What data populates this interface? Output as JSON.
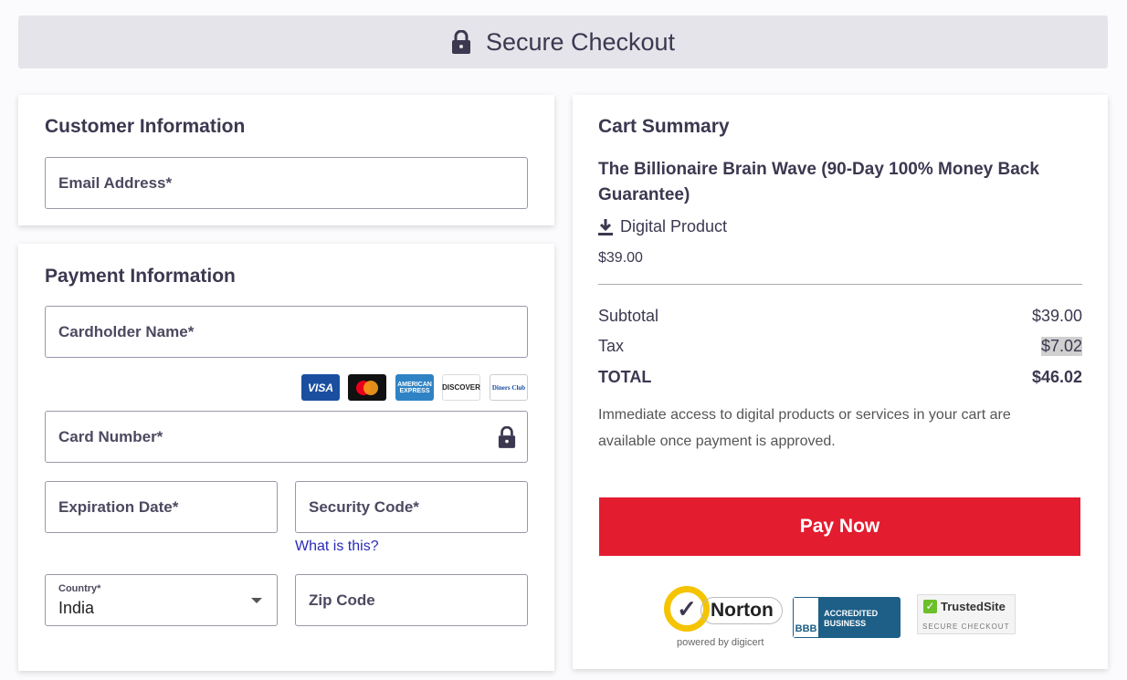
{
  "header": {
    "title": "Secure Checkout",
    "icon": "lock-icon"
  },
  "customer": {
    "title": "Customer Information",
    "email_label": "Email Address*"
  },
  "payment": {
    "title": "Payment Information",
    "cardholder_label": "Cardholder Name*",
    "card_brands": [
      "VISA",
      "mastercard",
      "AMERICAN EXPRESS",
      "DISCOVER",
      "Diners Club"
    ],
    "card_number_label": "Card Number*",
    "expiration_label": "Expiration Date*",
    "security_label": "Security Code*",
    "what_is_this": "What is this?",
    "country_label": "Country*",
    "country_value": "India",
    "zip_label": "Zip Code"
  },
  "cart": {
    "title": "Cart Summary",
    "product_name": "The Billionaire Brain Wave (90-Day 100% Money Back Guarantee)",
    "product_type": "Digital Product",
    "product_price": "$39.00",
    "subtotal_label": "Subtotal",
    "subtotal": "$39.00",
    "tax_label": "Tax",
    "tax": "$7.02",
    "total_label": "TOTAL",
    "total": "$46.02",
    "note": "Immediate access to digital products or services in your cart are available once payment is approved.",
    "pay_button": "Pay Now",
    "pay_color": "#e31c2f"
  },
  "badges": {
    "norton": "Norton",
    "norton_sub": "powered by digicert",
    "bbb": "BBB",
    "bbb_text": "ACCREDITED BUSINESS",
    "trusted": "TrustedSite",
    "trusted_sub": "SECURE CHECKOUT"
  }
}
